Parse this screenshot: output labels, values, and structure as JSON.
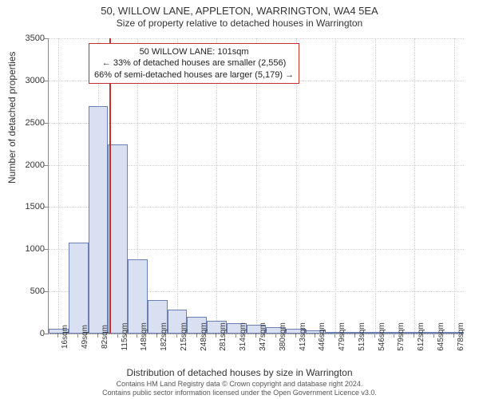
{
  "header": {
    "title": "50, WILLOW LANE, APPLETON, WARRINGTON, WA4 5EA",
    "subtitle": "Size of property relative to detached houses in Warrington"
  },
  "chart": {
    "type": "histogram",
    "ylabel": "Number of detached properties",
    "xlabel": "Distribution of detached houses by size in Warrington",
    "ylim": [
      0,
      3500
    ],
    "ytick_step": 500,
    "yticks": [
      0,
      500,
      1000,
      1500,
      2000,
      2500,
      3000,
      3500
    ],
    "categories": [
      "16sqm",
      "49sqm",
      "82sqm",
      "115sqm",
      "148sqm",
      "182sqm",
      "215sqm",
      "248sqm",
      "281sqm",
      "314sqm",
      "347sqm",
      "380sqm",
      "413sqm",
      "446sqm",
      "479sqm",
      "513sqm",
      "546sqm",
      "579sqm",
      "612sqm",
      "645sqm",
      "678sqm"
    ],
    "values": [
      60,
      1080,
      2700,
      2240,
      880,
      400,
      280,
      200,
      150,
      120,
      100,
      80,
      60,
      40,
      10,
      8,
      6,
      4,
      3,
      2,
      2
    ],
    "bar_fill": "#d9e0f2",
    "bar_border": "#6b7fb3",
    "grid_color": "#d0d0d0",
    "background_color": "#ffffff",
    "bar_width_ratio": 1.0,
    "axis_color": "#888888",
    "xtick_fontsize": 10,
    "ytick_fontsize": 11,
    "label_fontsize": 12,
    "title_fontsize": 13,
    "marker": {
      "value_sqm": 101,
      "position_category_index": 2.57,
      "line_color": "#c42f2f"
    },
    "callout": {
      "line1": "50 WILLOW LANE: 101sqm",
      "line2": "← 33% of detached houses are smaller (2,556)",
      "line3": "66% of semi-detached houses are larger (5,179) →",
      "border_color": "#c42f2f",
      "fontsize": 11
    }
  },
  "footer": {
    "line1": "Contains HM Land Registry data © Crown copyright and database right 2024.",
    "line2": "Contains public sector information licensed under the Open Government Licence v3.0."
  }
}
